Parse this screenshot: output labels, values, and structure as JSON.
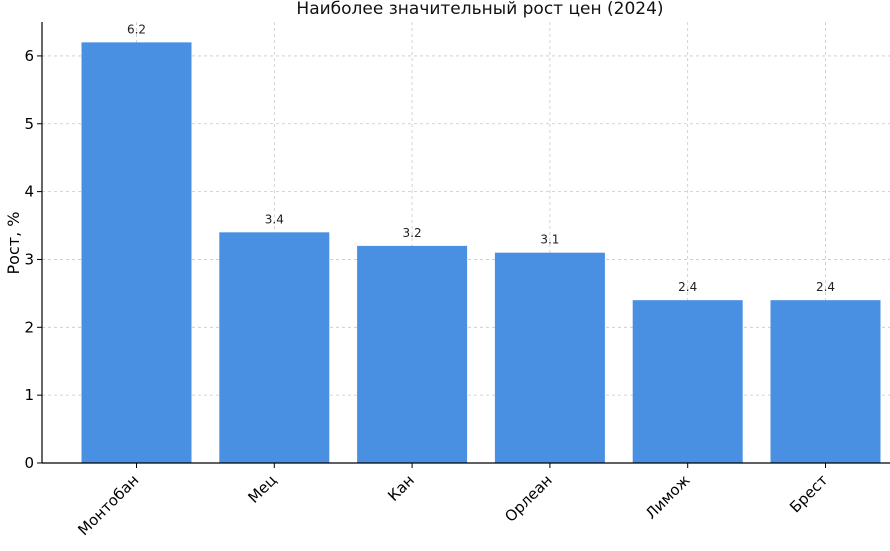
{
  "chart_data": {
    "type": "bar",
    "title": "Наиболее значительный рост цен (2024)",
    "xlabel": "",
    "ylabel": "Рост, %",
    "categories": [
      "Монтобан",
      "Мец",
      "Кан",
      "Орлеан",
      "Лимож",
      "Брест"
    ],
    "values": [
      6.2,
      3.4,
      3.2,
      3.1,
      2.4,
      2.4
    ],
    "data_labels": [
      "6.2",
      "3.4",
      "3.2",
      "3.1",
      "2.4",
      "2.4"
    ],
    "yticks": [
      0,
      1,
      2,
      3,
      4,
      5,
      6
    ],
    "ylim": [
      0,
      6.5
    ],
    "grid": true,
    "bar_color": "#4a90e2"
  }
}
